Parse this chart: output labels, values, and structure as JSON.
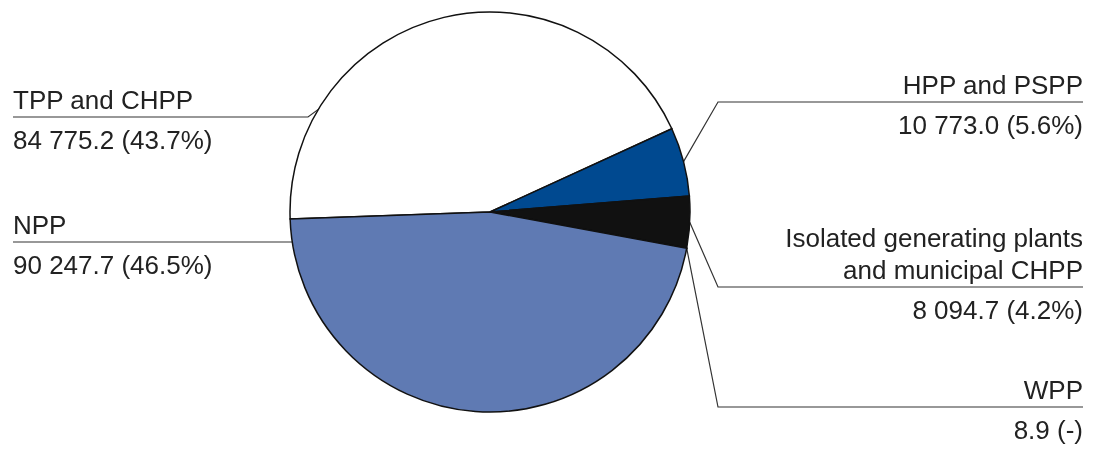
{
  "chart_data": {
    "type": "pie",
    "categories": [
      "TPP and CHPP",
      "HPP and PSPP",
      "Isolated generating plants and municipal CHPP",
      "WPP",
      "NPP"
    ],
    "values": [
      84775.2,
      10773.0,
      8094.7,
      8.9,
      90247.7
    ],
    "value_labels": [
      "84 775.2 (43.7%)",
      "10 773.0 (5.6%)",
      "8 094.7 (4.2%)",
      "8.9 (-)",
      "90 247.7 (46.5%)"
    ],
    "colors": [
      "#ffffff",
      "#004990",
      "#111111",
      "#111111",
      "#5f7ab3"
    ]
  }
}
